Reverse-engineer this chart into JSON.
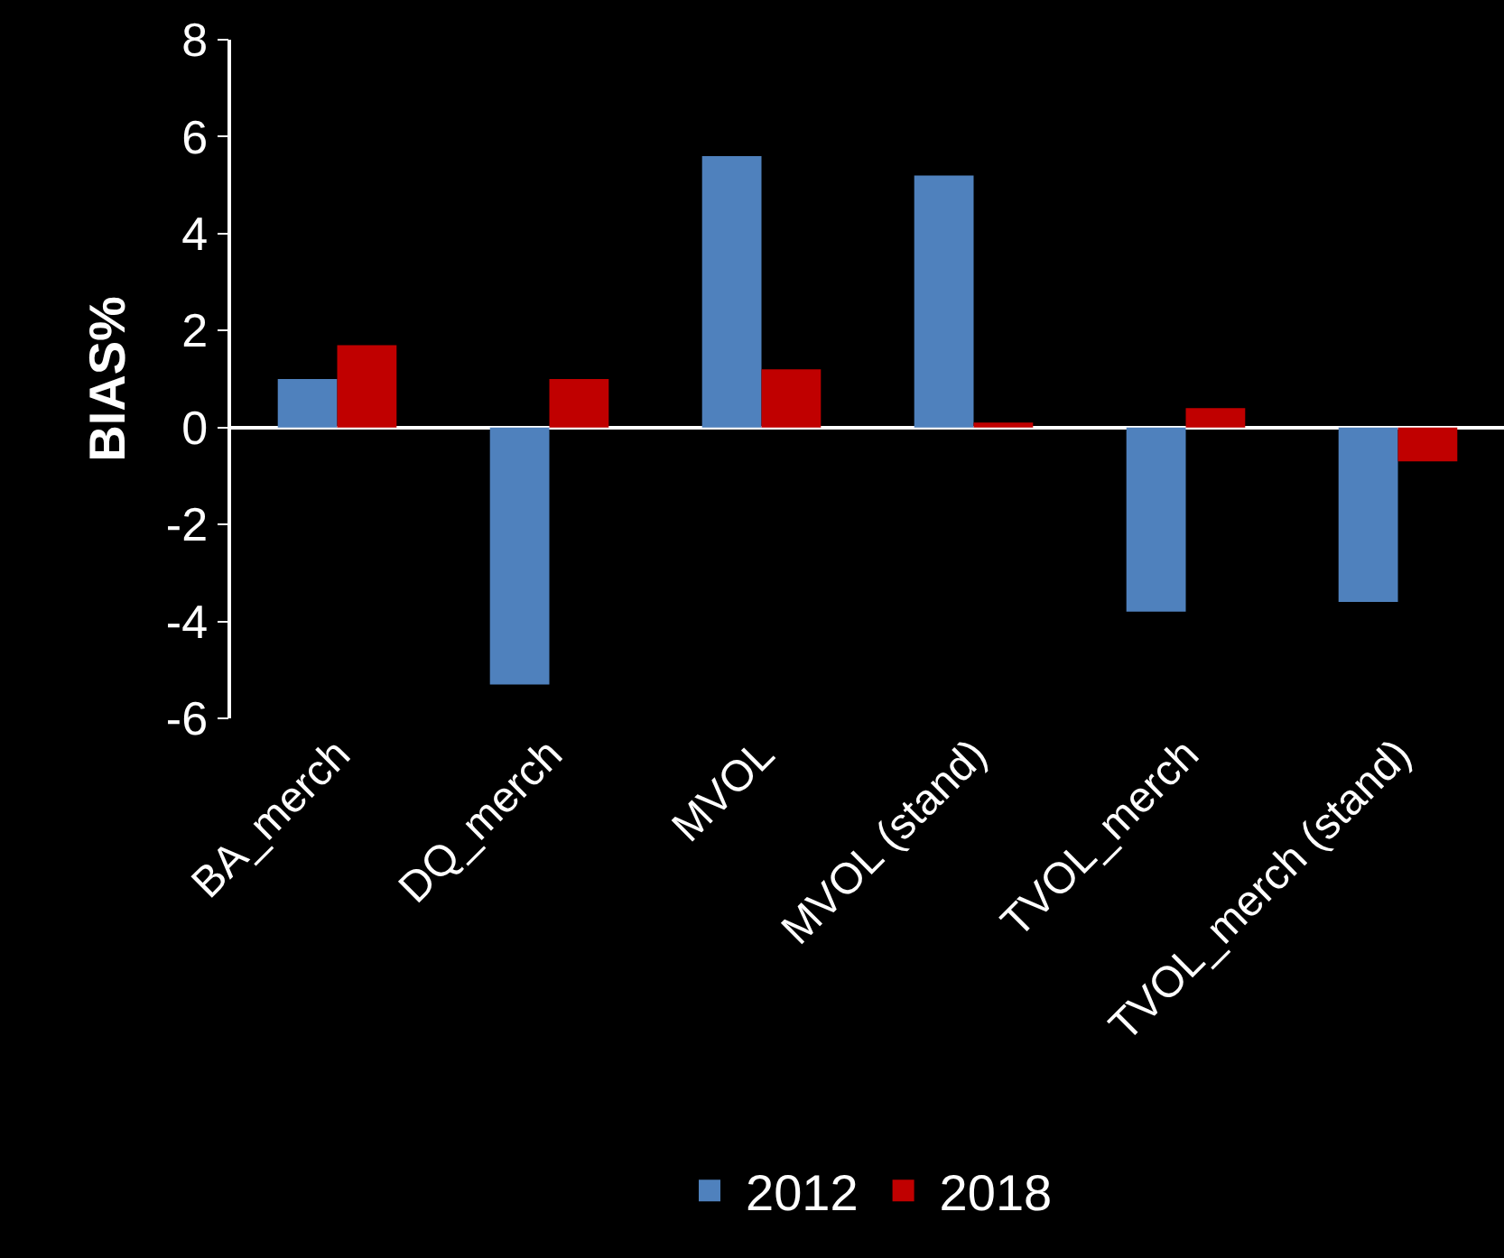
{
  "chart_data": {
    "type": "bar",
    "ylabel": "BIAS%",
    "categories": [
      "BA_merch",
      "DQ_merch",
      "MVOL",
      "MVOL (stand)",
      "TVOL_merch",
      "TVOL_merch (stand)"
    ],
    "series": [
      {
        "name": "2012",
        "color": "#4f81bd",
        "values": [
          1.0,
          -5.3,
          5.6,
          5.2,
          -3.8,
          -3.6
        ]
      },
      {
        "name": "2018",
        "color": "#c00000",
        "values": [
          1.7,
          1.0,
          1.2,
          0.1,
          0.4,
          -0.7
        ]
      }
    ],
    "ylim": [
      -6,
      8
    ],
    "yticks": [
      -6,
      -4,
      -2,
      0,
      2,
      4,
      6,
      8
    ],
    "legend": "bottom"
  }
}
